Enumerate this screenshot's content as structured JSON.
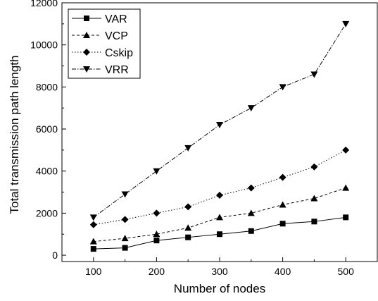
{
  "chart_data": {
    "type": "line",
    "title": "",
    "xlabel": "Number of nodes",
    "ylabel": "Total transmission path length",
    "x": [
      100,
      150,
      200,
      250,
      300,
      350,
      400,
      450,
      500
    ],
    "xlim": [
      50,
      550
    ],
    "ylim": [
      -300,
      12000
    ],
    "xticks": [
      100,
      200,
      300,
      400,
      500
    ],
    "yticks": [
      0,
      2000,
      4000,
      6000,
      8000,
      10000,
      12000
    ],
    "grid": false,
    "legend_position": "top-left",
    "series": [
      {
        "name": "VAR",
        "marker": "square",
        "line_style": "solid",
        "values": [
          300,
          350,
          700,
          850,
          1000,
          1150,
          1500,
          1600,
          1800
        ]
      },
      {
        "name": "VCP",
        "marker": "triangle-up",
        "line_style": "dashed",
        "values": [
          650,
          800,
          1000,
          1300,
          1800,
          2000,
          2400,
          2700,
          3200
        ]
      },
      {
        "name": "Cskip",
        "marker": "diamond",
        "line_style": "dotted",
        "values": [
          1450,
          1700,
          2000,
          2300,
          2850,
          3200,
          3700,
          4200,
          5000
        ]
      },
      {
        "name": "VRR",
        "marker": "triangle-down",
        "line_style": "dash-dot",
        "values": [
          1800,
          2900,
          4000,
          5100,
          6200,
          7000,
          8000,
          8600,
          11000
        ]
      }
    ],
    "colors": {
      "line": "#000000",
      "marker": "#000000",
      "axes": "#000000"
    }
  }
}
